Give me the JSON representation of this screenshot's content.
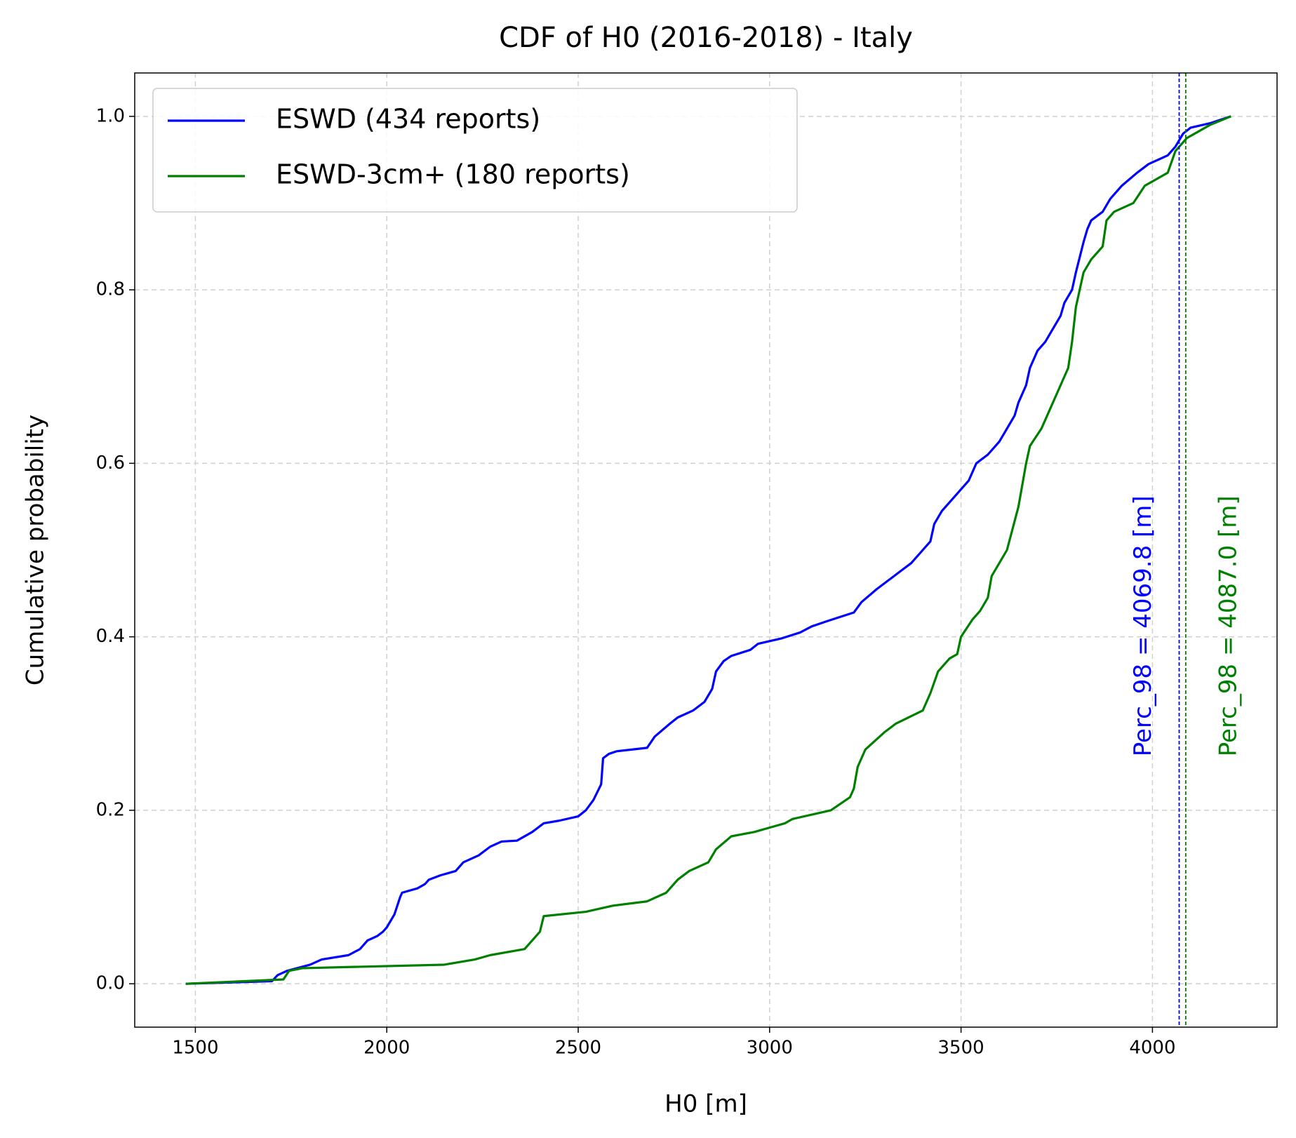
{
  "chart_data": {
    "type": "line",
    "title": "CDF of H0 (2016-2018) - Italy",
    "xlabel": "H0 [m]",
    "ylabel": "Cumulative probability",
    "xlim": [
      1341.6,
      4325.5
    ],
    "ylim": [
      -0.05,
      1.05
    ],
    "xticks": [
      1500,
      2000,
      2500,
      3000,
      3500,
      4000
    ],
    "yticks": [
      {
        "value": 0,
        "label": "0.0"
      },
      0.2,
      0.4,
      0.6,
      0.8,
      {
        "value": 1,
        "label": "1.0"
      }
    ],
    "grid": true,
    "legend": "upper left",
    "series": [
      {
        "name": "ESWD (434 reports)",
        "color": "#0000ff",
        "x": [
          1475,
          1700,
          1715,
          1740,
          1800,
          1830,
          1900,
          1930,
          1950,
          1975,
          1990,
          2000,
          2020,
          2035,
          2040,
          2080,
          2100,
          2110,
          2140,
          2180,
          2200,
          2240,
          2270,
          2300,
          2340,
          2380,
          2410,
          2450,
          2500,
          2520,
          2540,
          2560,
          2565,
          2580,
          2600,
          2680,
          2700,
          2740,
          2760,
          2800,
          2830,
          2850,
          2860,
          2880,
          2900,
          2950,
          2970,
          3030,
          3080,
          3110,
          3150,
          3220,
          3240,
          3280,
          3310,
          3340,
          3370,
          3400,
          3420,
          3430,
          3450,
          3480,
          3500,
          3520,
          3540,
          3570,
          3600,
          3620,
          3640,
          3650,
          3670,
          3680,
          3700,
          3720,
          3740,
          3760,
          3770,
          3790,
          3800,
          3820,
          3830,
          3840,
          3870,
          3890,
          3920,
          3960,
          3990,
          4040,
          4060,
          4080,
          4100,
          4150,
          4205
        ],
        "values": [
          0,
          0.003,
          0.01,
          0.015,
          0.022,
          0.028,
          0.033,
          0.04,
          0.05,
          0.055,
          0.06,
          0.065,
          0.08,
          0.1,
          0.105,
          0.11,
          0.115,
          0.12,
          0.125,
          0.13,
          0.14,
          0.148,
          0.158,
          0.164,
          0.165,
          0.175,
          0.185,
          0.188,
          0.193,
          0.2,
          0.212,
          0.23,
          0.26,
          0.265,
          0.268,
          0.272,
          0.285,
          0.3,
          0.307,
          0.315,
          0.325,
          0.34,
          0.36,
          0.372,
          0.378,
          0.385,
          0.392,
          0.398,
          0.405,
          0.412,
          0.418,
          0.428,
          0.44,
          0.455,
          0.465,
          0.475,
          0.485,
          0.5,
          0.51,
          0.53,
          0.545,
          0.56,
          0.57,
          0.58,
          0.6,
          0.61,
          0.625,
          0.64,
          0.655,
          0.67,
          0.69,
          0.71,
          0.73,
          0.74,
          0.755,
          0.77,
          0.785,
          0.8,
          0.82,
          0.855,
          0.87,
          0.88,
          0.89,
          0.905,
          0.92,
          0.935,
          0.945,
          0.955,
          0.965,
          0.98,
          0.987,
          0.992,
          1.0
        ]
      },
      {
        "name": "ESWD-3cm+ (180 reports)",
        "color": "#008000",
        "x": [
          1475,
          1730,
          1745,
          1780,
          2150,
          2230,
          2270,
          2360,
          2400,
          2410,
          2520,
          2590,
          2680,
          2730,
          2760,
          2790,
          2840,
          2860,
          2900,
          2960,
          3000,
          3040,
          3060,
          3160,
          3210,
          3220,
          3230,
          3250,
          3300,
          3330,
          3400,
          3420,
          3440,
          3470,
          3490,
          3500,
          3530,
          3550,
          3570,
          3580,
          3620,
          3650,
          3670,
          3680,
          3710,
          3730,
          3760,
          3780,
          3790,
          3800,
          3820,
          3840,
          3870,
          3880,
          3900,
          3950,
          3980,
          4040,
          4060,
          4090,
          4150,
          4205
        ],
        "values": [
          0,
          0.005,
          0.015,
          0.018,
          0.022,
          0.028,
          0.033,
          0.04,
          0.06,
          0.078,
          0.083,
          0.09,
          0.095,
          0.105,
          0.12,
          0.13,
          0.14,
          0.155,
          0.17,
          0.175,
          0.18,
          0.185,
          0.19,
          0.2,
          0.215,
          0.225,
          0.25,
          0.27,
          0.29,
          0.3,
          0.315,
          0.335,
          0.36,
          0.375,
          0.38,
          0.4,
          0.42,
          0.43,
          0.445,
          0.47,
          0.5,
          0.55,
          0.6,
          0.62,
          0.64,
          0.66,
          0.69,
          0.71,
          0.74,
          0.78,
          0.82,
          0.835,
          0.85,
          0.88,
          0.89,
          0.9,
          0.92,
          0.935,
          0.96,
          0.975,
          0.99,
          1.0
        ]
      }
    ],
    "vlines": [
      {
        "value": 4069.8,
        "color": "#0000ff",
        "label": "Perc_98 = 4069.8 [m]"
      },
      {
        "value": 4087.0,
        "color": "#008000",
        "label": "Perc_98 = 4087.0 [m]"
      }
    ]
  }
}
